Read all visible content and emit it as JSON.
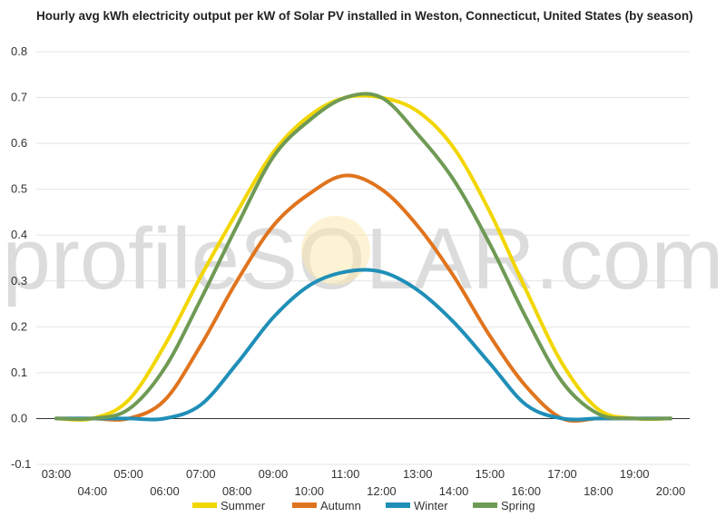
{
  "chart_data": {
    "type": "line",
    "title": "Hourly avg kWh electricity output per kW of Solar PV installed in Weston, Connecticut, United States (by season)",
    "xlabel": "",
    "ylabel": "",
    "x_labels": [
      "03:00",
      "04:00",
      "05:00",
      "06:00",
      "07:00",
      "08:00",
      "09:00",
      "10:00",
      "11:00",
      "12:00",
      "13:00",
      "14:00",
      "15:00",
      "16:00",
      "17:00",
      "18:00",
      "19:00",
      "20:00"
    ],
    "ylim": [
      -0.1,
      0.8
    ],
    "y_ticks": [
      "-0.1",
      "0.0",
      "0.1",
      "0.2",
      "0.3",
      "0.4",
      "0.5",
      "0.6",
      "0.7",
      "0.8"
    ],
    "grid": true,
    "legend_position": "bottom",
    "watermark": "profileSOLAR.com",
    "series": [
      {
        "name": "Summer",
        "color": "#f2d600",
        "values": [
          0.0,
          0.0,
          0.04,
          0.16,
          0.31,
          0.45,
          0.58,
          0.66,
          0.7,
          0.7,
          0.67,
          0.59,
          0.45,
          0.28,
          0.12,
          0.02,
          0.0,
          0.0
        ]
      },
      {
        "name": "Autumn",
        "color": "#e0741e",
        "values": [
          0.0,
          0.0,
          0.0,
          0.04,
          0.16,
          0.3,
          0.42,
          0.49,
          0.53,
          0.5,
          0.42,
          0.31,
          0.18,
          0.07,
          0.0,
          0.0,
          0.0,
          0.0
        ]
      },
      {
        "name": "Winter",
        "color": "#1f8fb8",
        "values": [
          0.0,
          0.0,
          0.0,
          0.0,
          0.03,
          0.12,
          0.22,
          0.29,
          0.32,
          0.32,
          0.28,
          0.21,
          0.12,
          0.03,
          0.0,
          0.0,
          0.0,
          0.0
        ]
      },
      {
        "name": "Spring",
        "color": "#6f9a55",
        "values": [
          0.0,
          0.0,
          0.02,
          0.11,
          0.26,
          0.42,
          0.57,
          0.65,
          0.7,
          0.7,
          0.62,
          0.52,
          0.38,
          0.22,
          0.08,
          0.01,
          0.0,
          0.0
        ]
      }
    ]
  }
}
